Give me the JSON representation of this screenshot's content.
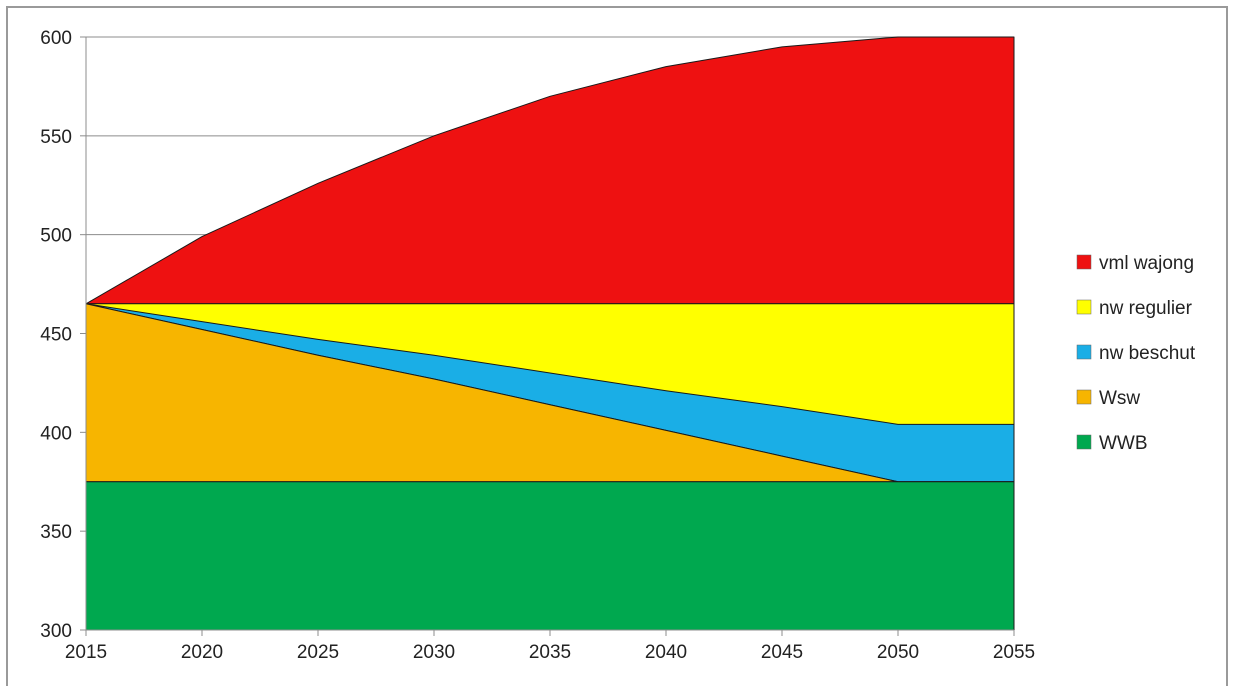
{
  "chart_data": {
    "type": "area",
    "title": "",
    "xlabel": "",
    "ylabel": "",
    "x": [
      2015,
      2020,
      2025,
      2030,
      2035,
      2040,
      2045,
      2050,
      2055
    ],
    "xlim": [
      2015,
      2055
    ],
    "ylim": [
      300,
      600
    ],
    "xticks": [
      "2015",
      "2020",
      "2025",
      "2030",
      "2035",
      "2040",
      "2045",
      "2050",
      "2055"
    ],
    "yticks": [
      "300",
      "350",
      "400",
      "450",
      "500",
      "550",
      "600"
    ],
    "grid": true,
    "legend_position": "right",
    "stack_order_bottom_to_top": [
      "WWB",
      "Wsw",
      "nw beschut",
      "nw regulier",
      "vml wajong"
    ],
    "series": [
      {
        "name": "vml wajong",
        "color": "#ee1111",
        "lower": [
          465,
          465,
          465,
          465,
          465,
          465,
          465,
          465,
          465
        ],
        "upper": [
          465,
          499,
          526,
          550,
          570,
          585,
          595,
          600,
          600
        ]
      },
      {
        "name": "nw regulier",
        "color": "#ffff00",
        "lower": [
          465,
          452,
          439,
          427,
          414,
          401,
          388,
          375,
          375
        ],
        "upper": [
          465,
          465,
          465,
          465,
          465,
          465,
          465,
          465,
          465
        ]
      },
      {
        "name": "nw beschut",
        "color": "#1aaee6",
        "lower": [
          465,
          452,
          439,
          427,
          414,
          401,
          388,
          375,
          375
        ],
        "upper": [
          465,
          456,
          447,
          439,
          430,
          421,
          413,
          404,
          404
        ]
      },
      {
        "name": "Wsw",
        "color": "#f7b500",
        "lower": [
          375,
          375,
          375,
          375,
          375,
          375,
          375,
          375,
          375
        ],
        "upper": [
          465,
          452,
          439,
          427,
          414,
          401,
          388,
          375,
          375
        ]
      },
      {
        "name": "WWB",
        "color": "#00a84f",
        "lower": [
          300,
          300,
          300,
          300,
          300,
          300,
          300,
          300,
          300
        ],
        "upper": [
          375,
          375,
          375,
          375,
          375,
          375,
          375,
          375,
          375
        ]
      }
    ],
    "legend": [
      "vml wajong",
      "nw regulier",
      "nw beschut",
      "Wsw",
      "WWB"
    ]
  }
}
